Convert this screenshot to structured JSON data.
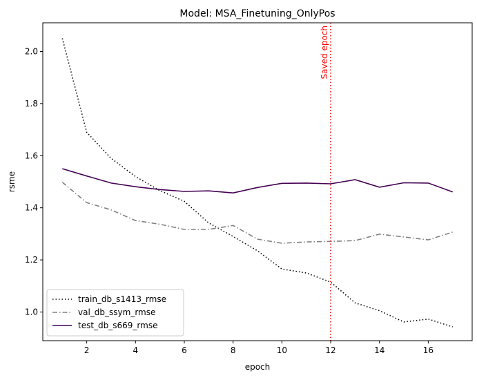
{
  "chart_data": {
    "type": "line",
    "title": "Model: MSA_Finetuning_OnlyPos",
    "xlabel": "epoch",
    "ylabel": "rsme",
    "xlim": [
      0.2,
      17.8
    ],
    "ylim": [
      0.89,
      2.11
    ],
    "xticks": [
      2,
      4,
      6,
      8,
      10,
      12,
      14,
      16
    ],
    "yticks": [
      1.0,
      1.2,
      1.4,
      1.6,
      1.8,
      2.0
    ],
    "ytick_labels": [
      "1.0",
      "1.2",
      "1.4",
      "1.6",
      "1.8",
      "2.0"
    ],
    "grid": false,
    "legend": "lower-left",
    "x": [
      1,
      2,
      3,
      4,
      5,
      6,
      7,
      8,
      9,
      10,
      11,
      12,
      13,
      14,
      15,
      16,
      17
    ],
    "series": [
      {
        "name": "train_db_s1413_rmse",
        "color": "#000000",
        "style": "dotted",
        "values": [
          2.05,
          1.69,
          1.59,
          1.52,
          1.466,
          1.425,
          1.342,
          1.29,
          1.235,
          1.165,
          1.15,
          1.115,
          1.035,
          1.005,
          0.962,
          0.973,
          0.943
        ]
      },
      {
        "name": "val_db_ssym_rmse",
        "color": "#808080",
        "style": "dashdot",
        "values": [
          1.498,
          1.42,
          1.392,
          1.351,
          1.337,
          1.317,
          1.317,
          1.332,
          1.28,
          1.264,
          1.269,
          1.271,
          1.274,
          1.299,
          1.288,
          1.277,
          1.307
        ]
      },
      {
        "name": "test_db_s669_rmse",
        "color": "#440154",
        "style": "solid",
        "values": [
          1.55,
          1.522,
          1.495,
          1.481,
          1.47,
          1.463,
          1.465,
          1.457,
          1.478,
          1.494,
          1.495,
          1.492,
          1.508,
          1.479,
          1.496,
          1.495,
          1.461
        ]
      }
    ],
    "annotations": [
      {
        "type": "vline",
        "x": 12,
        "label": "Saved epoch",
        "color": "#ff0000",
        "style": "dotted"
      }
    ]
  }
}
